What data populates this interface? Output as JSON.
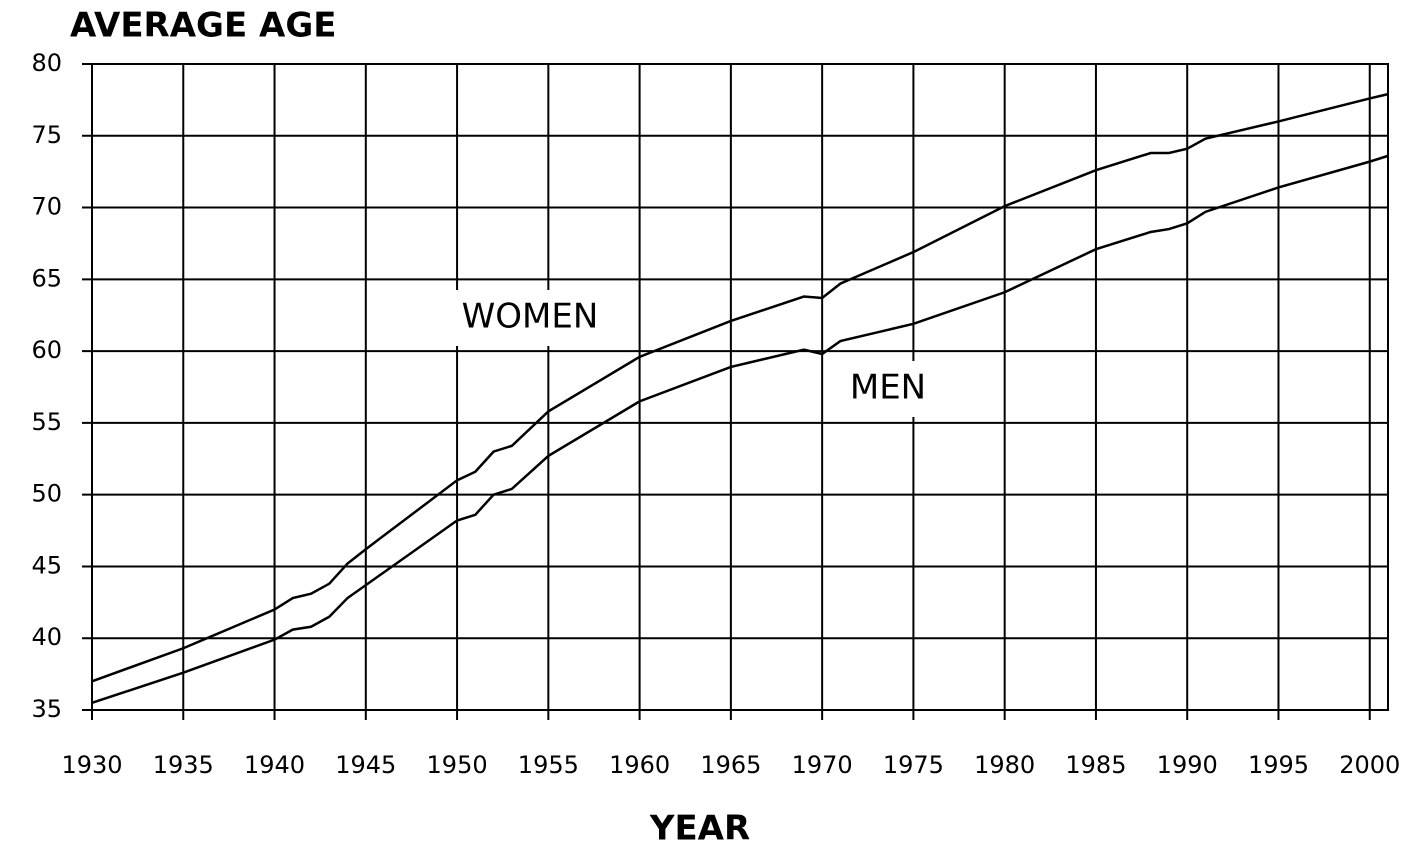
{
  "chart_data": {
    "type": "line",
    "title": "AVERAGE AGE",
    "x_label": "YEAR",
    "x": [
      1930,
      1935,
      1940,
      1941,
      1942,
      1943,
      1944,
      1945,
      1950,
      1951,
      1952,
      1953,
      1955,
      1960,
      1965,
      1969,
      1970,
      1971,
      1975,
      1980,
      1985,
      1988,
      1989,
      1990,
      1991,
      1995,
      2000,
      2001
    ],
    "series": [
      {
        "name": "WOMEN",
        "color": "#000000",
        "values": [
          37,
          39.3,
          42,
          42.8,
          43.1,
          43.8,
          45.2,
          46.2,
          51,
          51.6,
          53,
          53.4,
          55.8,
          59.6,
          62.1,
          63.8,
          63.7,
          64.7,
          66.9,
          70.1,
          72.6,
          73.8,
          73.8,
          74.1,
          74.8,
          76,
          77.6,
          77.9
        ]
      },
      {
        "name": "MEN",
        "color": "#000000",
        "values": [
          35.5,
          37.6,
          39.9,
          40.6,
          40.8,
          41.5,
          42.8,
          43.7,
          48.2,
          48.6,
          50,
          50.4,
          52.7,
          56.5,
          58.9,
          60.1,
          59.8,
          60.7,
          61.9,
          64.1,
          67.1,
          68.3,
          68.5,
          68.9,
          69.7,
          71.4,
          73.2,
          73.6
        ]
      }
    ],
    "xlim": [
      1930,
      2001
    ],
    "xticks": [
      1930,
      1935,
      1940,
      1945,
      1950,
      1955,
      1960,
      1965,
      1970,
      1975,
      1980,
      1985,
      1990,
      1995,
      2000
    ],
    "ylim": [
      35,
      80
    ],
    "yticks": [
      35,
      40,
      45,
      50,
      55,
      60,
      65,
      70,
      75,
      80
    ],
    "grid": true
  }
}
